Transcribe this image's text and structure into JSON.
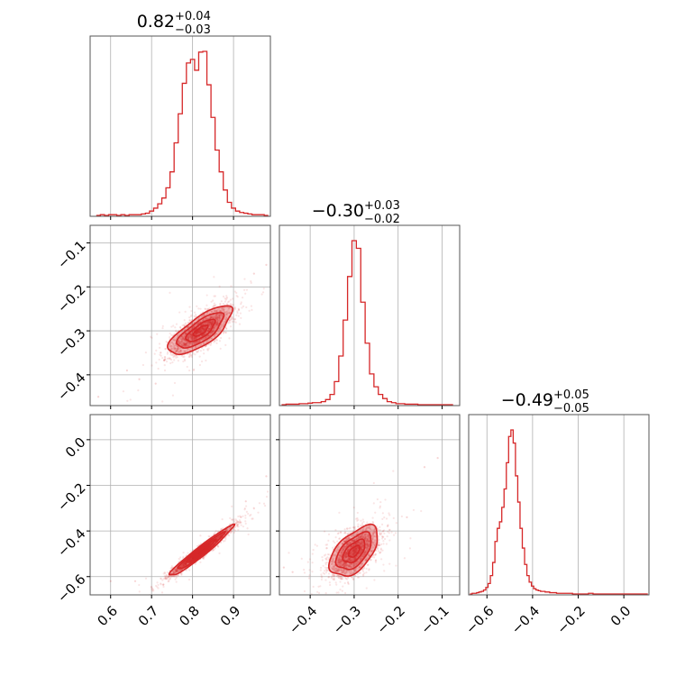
{
  "chart_data": {
    "type": "corner",
    "color": "#d62728",
    "grid": true,
    "parameters": [
      {
        "median": 0.82,
        "plus": 0.04,
        "minus": 0.03,
        "title": "0.82",
        "title_plus": "+0.04",
        "title_minus": "−0.03",
        "range": [
          0.55,
          0.99
        ],
        "ticks": [
          0.6,
          0.7,
          0.8,
          0.9
        ],
        "tick_labels": [
          "0.6",
          "0.7",
          "0.8",
          "0.9"
        ]
      },
      {
        "median": -0.3,
        "plus": 0.03,
        "minus": 0.02,
        "title": "−0.30",
        "title_plus": "+0.03",
        "title_minus": "−0.02",
        "range": [
          -0.47,
          -0.06
        ],
        "ticks": [
          -0.4,
          -0.3,
          -0.2,
          -0.1
        ],
        "tick_labels": [
          "−0.4",
          "−0.3",
          "−0.2",
          "−0.1"
        ]
      },
      {
        "median": -0.49,
        "plus": 0.05,
        "minus": 0.05,
        "title": "−0.49",
        "title_plus": "+0.05",
        "title_minus": "−0.05",
        "range": [
          -0.68,
          0.11
        ],
        "ticks": [
          -0.6,
          -0.4,
          -0.2,
          0.0
        ],
        "tick_labels": [
          "−0.6",
          "−0.4",
          "−0.2",
          "0.0"
        ]
      }
    ],
    "histograms": [
      {
        "param": 0,
        "x": [
          0.57,
          0.58,
          0.59,
          0.6,
          0.61,
          0.62,
          0.63,
          0.64,
          0.65,
          0.66,
          0.67,
          0.68,
          0.69,
          0.7,
          0.71,
          0.72,
          0.73,
          0.74,
          0.75,
          0.76,
          0.77,
          0.78,
          0.79,
          0.8,
          0.81,
          0.82,
          0.83,
          0.84,
          0.85,
          0.86,
          0.87,
          0.88,
          0.89,
          0.9,
          0.91,
          0.92,
          0.93,
          0.94,
          0.95,
          0.96,
          0.97,
          0.98
        ],
        "counts": [
          0,
          1,
          0,
          1,
          1,
          0,
          1,
          0,
          1,
          1,
          1,
          2,
          3,
          6,
          10,
          16,
          24,
          38,
          60,
          100,
          140,
          182,
          210,
          215,
          200,
          225,
          226,
          180,
          135,
          90,
          60,
          35,
          18,
          10,
          6,
          4,
          3,
          2,
          1,
          1,
          1,
          0
        ]
      },
      {
        "param": 1,
        "x": [
          -0.46,
          -0.45,
          -0.44,
          -0.43,
          -0.42,
          -0.41,
          -0.4,
          -0.39,
          -0.38,
          -0.37,
          -0.36,
          -0.35,
          -0.34,
          -0.33,
          -0.32,
          -0.31,
          -0.3,
          -0.29,
          -0.28,
          -0.27,
          -0.26,
          -0.25,
          -0.24,
          -0.23,
          -0.22,
          -0.21,
          -0.2,
          -0.19,
          -0.18,
          -0.17,
          -0.16,
          -0.15,
          -0.14,
          -0.13,
          -0.12,
          -0.11,
          -0.1,
          -0.09,
          -0.08
        ],
        "counts": [
          0,
          1,
          1,
          1,
          2,
          2,
          3,
          4,
          4,
          6,
          10,
          20,
          45,
          95,
          165,
          250,
          320,
          305,
          200,
          120,
          60,
          35,
          20,
          12,
          6,
          4,
          2,
          2,
          1,
          1,
          1,
          0,
          0,
          0,
          0,
          0,
          0,
          0,
          0
        ]
      },
      {
        "param": 2,
        "x": [
          -0.67,
          -0.66,
          -0.65,
          -0.64,
          -0.63,
          -0.62,
          -0.61,
          -0.6,
          -0.59,
          -0.58,
          -0.57,
          -0.56,
          -0.55,
          -0.54,
          -0.53,
          -0.52,
          -0.51,
          -0.5,
          -0.49,
          -0.48,
          -0.47,
          -0.46,
          -0.45,
          -0.44,
          -0.43,
          -0.42,
          -0.41,
          -0.4,
          -0.39,
          -0.38,
          -0.37,
          -0.36,
          -0.35,
          -0.34,
          -0.33,
          -0.32,
          -0.31,
          -0.3,
          -0.29,
          -0.28,
          -0.27,
          -0.26,
          -0.25,
          -0.24,
          -0.23,
          -0.22,
          -0.21,
          -0.2,
          -0.19,
          -0.18,
          -0.17,
          -0.16,
          -0.15,
          -0.14,
          -0.13,
          -0.12,
          -0.11,
          -0.1,
          -0.09,
          -0.08,
          -0.07,
          -0.06,
          -0.05,
          -0.04,
          -0.03,
          -0.02,
          -0.01,
          0.0,
          0.01,
          0.02,
          0.03,
          0.04,
          0.05,
          0.06,
          0.07,
          0.08,
          0.09,
          0.1
        ],
        "counts": [
          0,
          1,
          1,
          2,
          3,
          4,
          6,
          10,
          16,
          28,
          48,
          80,
          100,
          110,
          132,
          160,
          200,
          240,
          250,
          230,
          180,
          140,
          100,
          70,
          45,
          28,
          18,
          12,
          8,
          6,
          5,
          4,
          4,
          3,
          3,
          2,
          2,
          2,
          1,
          1,
          1,
          1,
          1,
          1,
          1,
          0,
          0,
          0,
          0,
          0,
          0,
          0,
          1,
          1,
          0,
          0,
          0,
          0,
          0,
          0,
          0,
          0,
          0,
          0,
          0,
          0,
          0,
          0,
          0,
          0,
          0,
          0,
          0,
          0,
          0,
          0,
          0,
          0
        ]
      }
    ],
    "panels_2d": [
      {
        "x_param": 0,
        "y_param": 1,
        "rho": 0.75,
        "n_points": 2400,
        "contour_levels": [
          0.5,
          1.0,
          1.6,
          2.2
        ],
        "outliers": [
          [
            0.57,
            -0.45
          ],
          [
            0.64,
            -0.39
          ],
          [
            0.71,
            -0.42
          ],
          [
            0.95,
            -0.17
          ],
          [
            0.98,
            -0.15
          ],
          [
            0.67,
            -0.41
          ]
        ]
      },
      {
        "x_param": 0,
        "y_param": 2,
        "rho": 0.97,
        "n_points": 2400,
        "contour_levels": [
          0.5,
          1.0,
          1.6,
          2.2
        ],
        "outliers": [
          [
            0.98,
            -0.16
          ],
          [
            0.6,
            -0.62
          ],
          [
            0.66,
            -0.62
          ],
          [
            0.93,
            -0.27
          ]
        ]
      },
      {
        "x_param": 1,
        "y_param": 2,
        "rho": 0.55,
        "n_points": 2400,
        "contour_levels": [
          0.5,
          1.0,
          1.6,
          2.2
        ],
        "outliers": [
          [
            -0.44,
            -0.58
          ],
          [
            -0.46,
            -0.56
          ],
          [
            -0.14,
            -0.12
          ],
          [
            -0.11,
            -0.08
          ],
          [
            -0.18,
            -0.34
          ]
        ]
      }
    ]
  }
}
